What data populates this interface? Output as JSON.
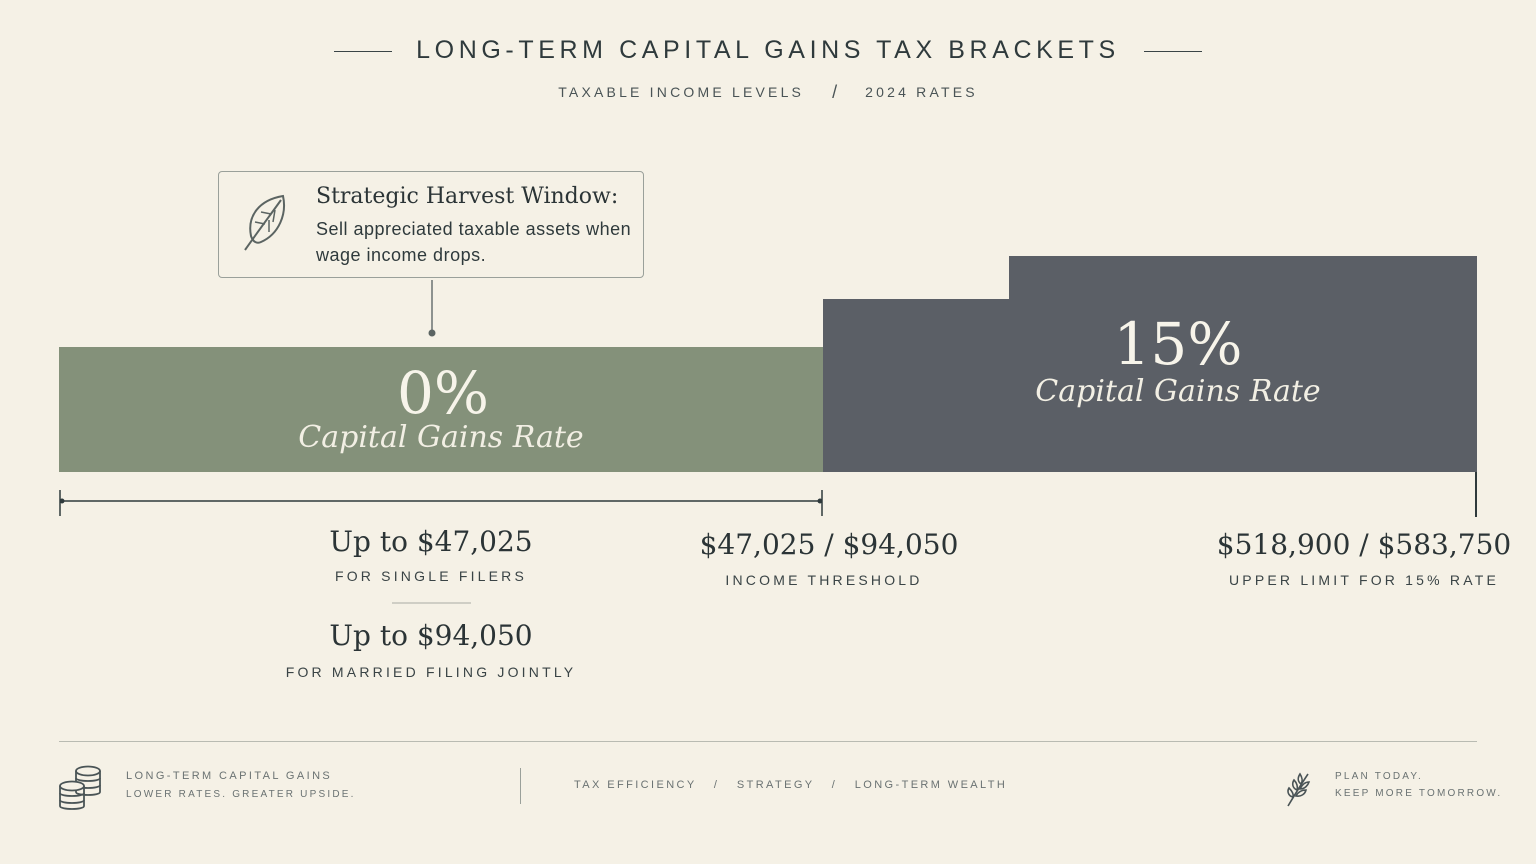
{
  "header": {
    "title": "LONG-TERM CAPITAL GAINS TAX BRACKETS",
    "subtitle_left": "TAXABLE INCOME LEVELS",
    "subtitle_sep": "/",
    "subtitle_right": "2024 RATES"
  },
  "callout": {
    "icon": "leaf-icon",
    "heading": "Strategic Harvest Window:",
    "text": "Sell appreciated taxable assets when wage income drops."
  },
  "chart_data": {
    "type": "bar",
    "brackets": [
      {
        "rate": "0%",
        "label": "Capital Gains Rate",
        "color": "#84917a",
        "single_upper": 47025,
        "joint_upper": 94050
      },
      {
        "rate": "15%",
        "label": "Capital Gains Rate",
        "color": "#5b5f66",
        "single_upper": 518900,
        "joint_upper": 583750
      }
    ],
    "zero_bracket": {
      "single": {
        "amount": "Up to $47,025",
        "caption": "FOR SINGLE FILERS"
      },
      "joint": {
        "amount": "Up to $94,050",
        "caption": "FOR MARRIED FILING JOINTLY"
      }
    },
    "threshold": {
      "amount": "$47,025 / $94,050",
      "caption": "INCOME THRESHOLD"
    },
    "upper_limit": {
      "amount": "$518,900 / $583,750",
      "caption": "UPPER LIMIT FOR 15% RATE"
    }
  },
  "footer": {
    "left_icon": "coins-icon",
    "left_title": "LONG-TERM CAPITAL GAINS",
    "left_tagline": "LOWER RATES. GREATER UPSIDE.",
    "center": [
      "TAX EFFICIENCY",
      "STRATEGY",
      "LONG-TERM WEALTH"
    ],
    "center_sep": "/",
    "right_icon": "sprig-icon",
    "right_line1": "PLAN TODAY.",
    "right_line2": "KEEP MORE TOMORROW."
  },
  "colors": {
    "background": "#f5f1e6",
    "zero_bracket": "#84917a",
    "fifteen_bracket": "#5b5f66",
    "text": "#2f3a3c"
  }
}
